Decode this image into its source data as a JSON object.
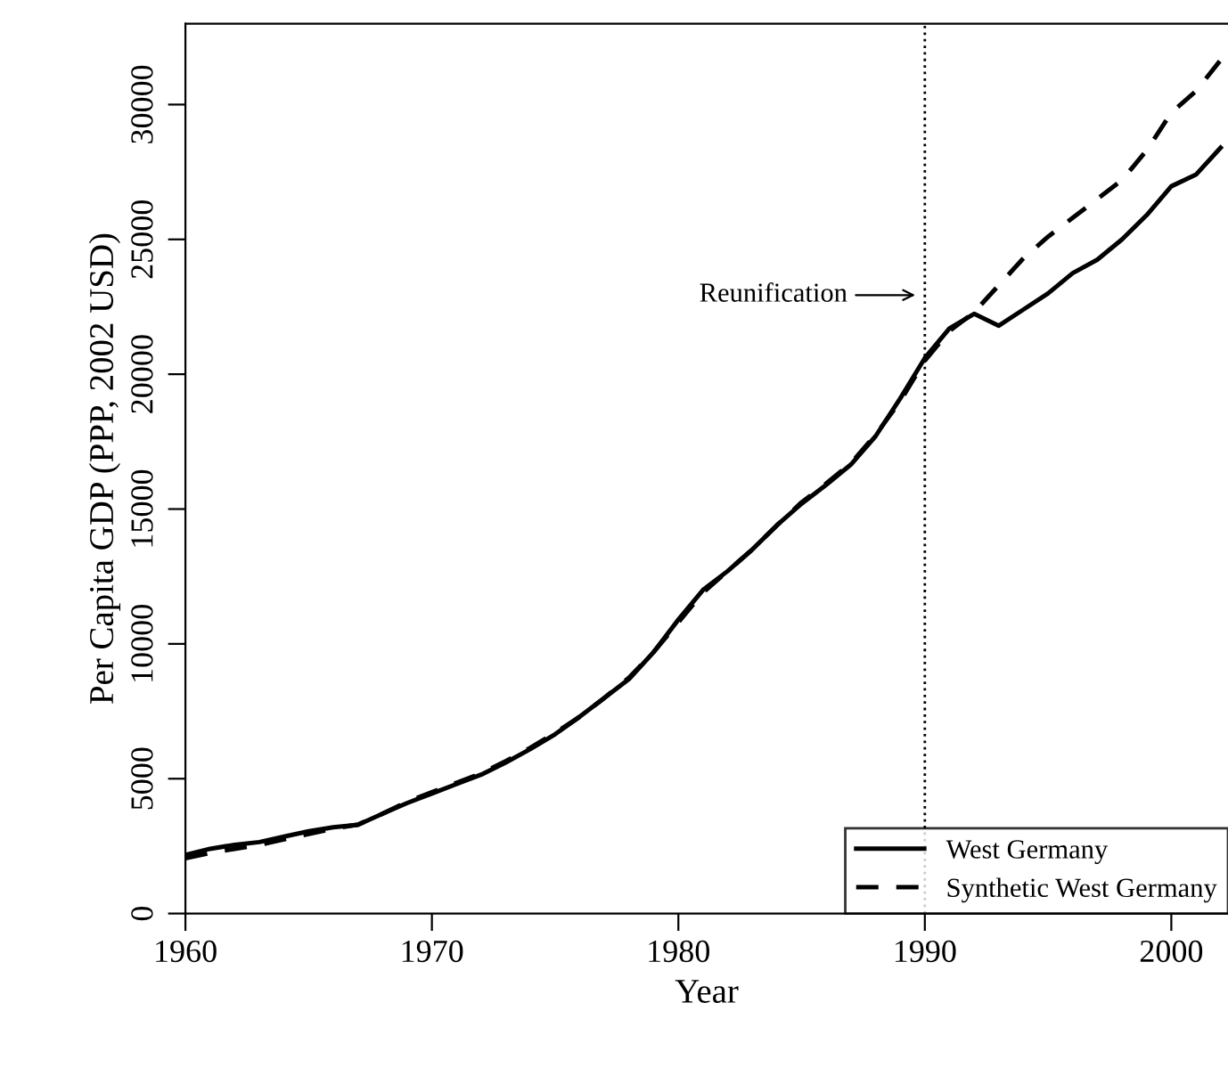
{
  "chart_data": {
    "type": "line",
    "xlabel": "Year",
    "ylabel": "Per Capita GDP (PPP, 2002 USD)",
    "x": [
      1960,
      1961,
      1962,
      1963,
      1964,
      1965,
      1966,
      1967,
      1968,
      1969,
      1970,
      1971,
      1972,
      1973,
      1974,
      1975,
      1976,
      1977,
      1978,
      1979,
      1980,
      1981,
      1982,
      1983,
      1984,
      1985,
      1986,
      1987,
      1988,
      1989,
      1990,
      1991,
      1992,
      1993,
      1994,
      1995,
      1996,
      1997,
      1998,
      1999,
      2000,
      2001,
      2002
    ],
    "series": [
      {
        "name": "West Germany",
        "color": "#000000",
        "line_style": "solid",
        "values": [
          2170,
          2400,
          2550,
          2650,
          2850,
          3050,
          3200,
          3290,
          3700,
          4100,
          4450,
          4800,
          5150,
          5600,
          6100,
          6650,
          7300,
          8000,
          8700,
          9700,
          10900,
          12000,
          12700,
          13500,
          14400,
          15200,
          15900,
          16650,
          17700,
          19100,
          20600,
          21700,
          22240,
          21800,
          22400,
          23000,
          23750,
          24250,
          25000,
          25900,
          26970,
          27400,
          28400
        ]
      },
      {
        "name": "Synthetic West Germany",
        "color": "#000000",
        "line_style": "dashed",
        "values": [
          2050,
          2250,
          2400,
          2550,
          2750,
          2950,
          3150,
          3300,
          3700,
          4150,
          4500,
          4850,
          5200,
          5650,
          6150,
          6700,
          7300,
          8000,
          8750,
          9700,
          10800,
          11900,
          12700,
          13500,
          14400,
          15250,
          15950,
          16700,
          17750,
          19000,
          20500,
          21600,
          22300,
          23300,
          24300,
          25100,
          25800,
          26500,
          27200,
          28300,
          29700,
          30500,
          31650
        ]
      }
    ],
    "xlim": [
      1960,
      2002.3
    ],
    "xticks": [
      1960,
      1970,
      1980,
      1990,
      2000
    ],
    "ylim": [
      0,
      33000
    ],
    "yticks": [
      0,
      5000,
      10000,
      15000,
      20000,
      25000,
      30000
    ],
    "ref_lines": [
      {
        "axis": "x",
        "value": 1990,
        "line_style": "dotted",
        "color": "#000000"
      }
    ],
    "annotations": [
      "Reunification"
    ],
    "legend": "bottom right",
    "grid": false,
    "marker": "none"
  }
}
